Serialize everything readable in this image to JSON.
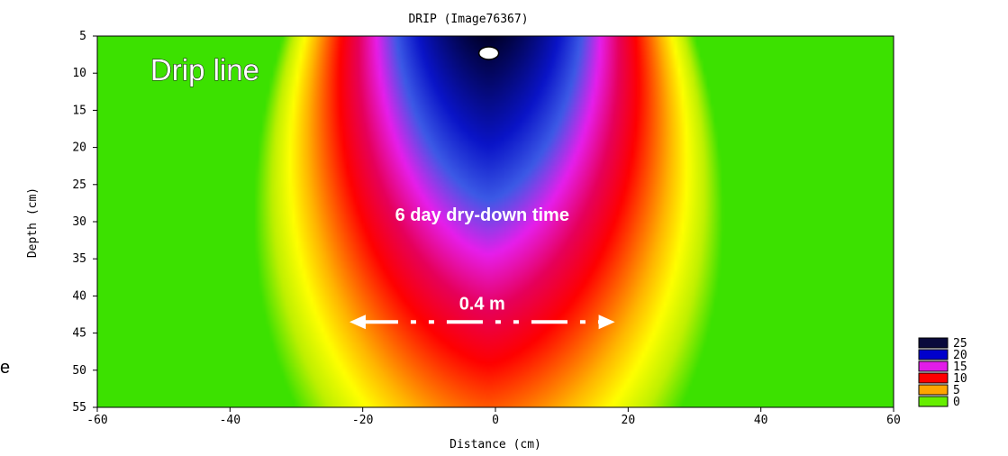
{
  "chart_data": {
    "type": "heatmap",
    "title": "DRIP (Image76367)",
    "xlabel": "Distance (cm)",
    "ylabel": "Depth (cm)",
    "xlim": [
      -60,
      60
    ],
    "ylim": [
      5,
      55
    ],
    "y_inverted": true,
    "grid": false,
    "x_ticks": [
      "-60",
      "-40",
      "-20",
      "0",
      "20",
      "40",
      "60"
    ],
    "y_ticks": [
      "5",
      "10",
      "15",
      "20",
      "25",
      "30",
      "35",
      "40",
      "45",
      "50",
      "55"
    ],
    "legend": {
      "placement": "bottom-right",
      "entries": [
        {
          "label": "25",
          "value": 25,
          "color": "#0a0a3c"
        },
        {
          "label": "20",
          "value": 20,
          "color": "#0000cc"
        },
        {
          "label": "15",
          "value": 15,
          "color": "#e21ce8"
        },
        {
          "label": "10",
          "value": 10,
          "color": "#ff0000"
        },
        {
          "label": "5",
          "value": 5,
          "color": "#ffa500"
        },
        {
          "label": "0",
          "value": 0,
          "color": "#66ee00"
        }
      ]
    },
    "annotations": [
      {
        "text": "Drip line",
        "x": -52,
        "y": 9.5
      },
      {
        "text": "6 day dry-down time",
        "x": -2,
        "y": 29
      },
      {
        "text": "0.4 m",
        "x": -2,
        "y": 41
      }
    ],
    "arrow": {
      "from_x": -22,
      "to_x": 18,
      "y": 43.5
    },
    "emitter": {
      "x": -1,
      "y": 7.3
    }
  },
  "edge_text": "e"
}
